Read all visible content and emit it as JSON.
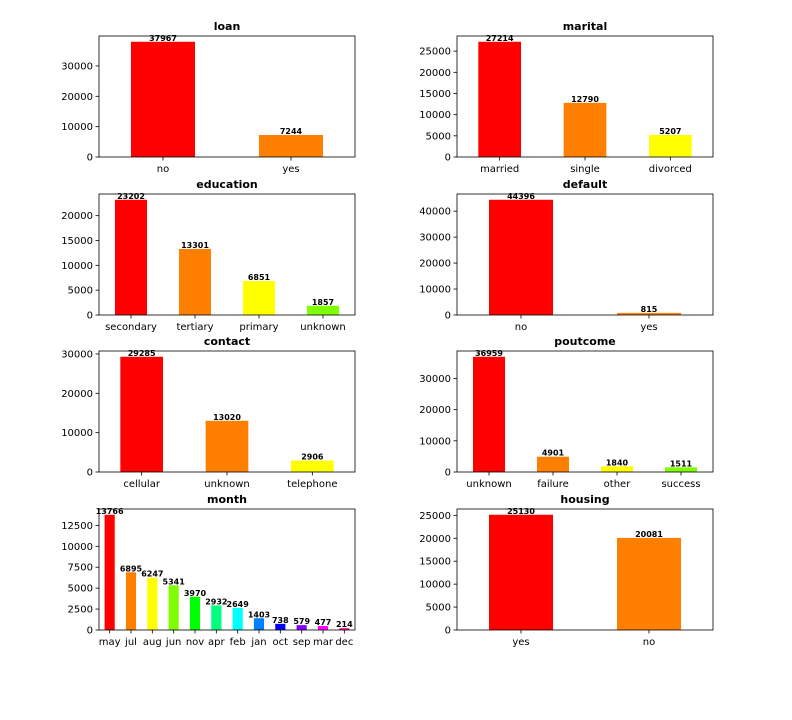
{
  "chart_data": [
    {
      "type": "bar",
      "title": "loan",
      "categories": [
        "no",
        "yes"
      ],
      "values": [
        37967,
        7244
      ],
      "colors": [
        "#ff0000",
        "#ff7f00"
      ],
      "ylim": [
        0,
        39865
      ],
      "yticks": [
        0,
        10000,
        20000,
        30000
      ],
      "grid": false,
      "legend": "none"
    },
    {
      "type": "bar",
      "title": "marital",
      "categories": [
        "married",
        "single",
        "divorced"
      ],
      "values": [
        27214,
        12790,
        5207
      ],
      "colors": [
        "#ff0000",
        "#ff7f00",
        "#ffff00"
      ],
      "ylim": [
        0,
        28575
      ],
      "yticks": [
        0,
        5000,
        10000,
        15000,
        20000,
        25000
      ],
      "grid": false,
      "legend": "none"
    },
    {
      "type": "bar",
      "title": "education",
      "categories": [
        "secondary",
        "tertiary",
        "primary",
        "unknown"
      ],
      "values": [
        23202,
        13301,
        6851,
        1857
      ],
      "colors": [
        "#ff0000",
        "#ff7f00",
        "#ffff00",
        "#7fff00"
      ],
      "ylim": [
        0,
        24362
      ],
      "yticks": [
        0,
        5000,
        10000,
        15000,
        20000
      ],
      "grid": false,
      "legend": "none"
    },
    {
      "type": "bar",
      "title": "default",
      "categories": [
        "no",
        "yes"
      ],
      "values": [
        44396,
        815
      ],
      "colors": [
        "#ff0000",
        "#ff7f00"
      ],
      "ylim": [
        0,
        46616
      ],
      "yticks": [
        0,
        10000,
        20000,
        30000,
        40000
      ],
      "grid": false,
      "legend": "none"
    },
    {
      "type": "bar",
      "title": "contact",
      "categories": [
        "cellular",
        "unknown",
        "telephone"
      ],
      "values": [
        29285,
        13020,
        2906
      ],
      "colors": [
        "#ff0000",
        "#ff7f00",
        "#ffff00"
      ],
      "ylim": [
        0,
        30749
      ],
      "yticks": [
        0,
        10000,
        20000,
        30000
      ],
      "grid": false,
      "legend": "none"
    },
    {
      "type": "bar",
      "title": "poutcome",
      "categories": [
        "unknown",
        "failure",
        "other",
        "success"
      ],
      "values": [
        36959,
        4901,
        1840,
        1511
      ],
      "colors": [
        "#ff0000",
        "#ff7f00",
        "#ffff00",
        "#7fff00"
      ],
      "ylim": [
        0,
        38807
      ],
      "yticks": [
        0,
        10000,
        20000,
        30000
      ],
      "grid": false,
      "legend": "none"
    },
    {
      "type": "bar",
      "title": "month",
      "categories": [
        "may",
        "jul",
        "aug",
        "jun",
        "nov",
        "apr",
        "feb",
        "jan",
        "oct",
        "sep",
        "mar",
        "dec"
      ],
      "values": [
        13766,
        6895,
        6247,
        5341,
        3970,
        2932,
        2649,
        1403,
        738,
        579,
        477,
        214
      ],
      "colors": [
        "#ff0000",
        "#ff7f00",
        "#ffff00",
        "#7fff00",
        "#00ff00",
        "#00ff7f",
        "#00ffff",
        "#007fff",
        "#0000ff",
        "#7f00ff",
        "#ff00ff",
        "#ff007f"
      ],
      "ylim": [
        0,
        14454
      ],
      "yticks": [
        0,
        2500,
        5000,
        7500,
        10000,
        12500
      ],
      "grid": false,
      "legend": "none"
    },
    {
      "type": "bar",
      "title": "housing",
      "categories": [
        "yes",
        "no"
      ],
      "values": [
        25130,
        20081
      ],
      "colors": [
        "#ff0000",
        "#ff7f00"
      ],
      "ylim": [
        0,
        26387
      ],
      "yticks": [
        0,
        5000,
        10000,
        15000,
        20000,
        25000
      ],
      "grid": false,
      "legend": "none"
    }
  ]
}
